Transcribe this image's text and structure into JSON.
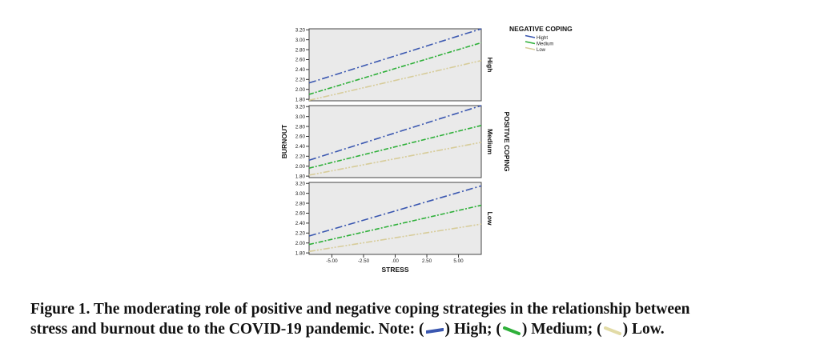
{
  "chart_data": {
    "type": "line",
    "x_label": "STRESS",
    "y_label": "BURNOUT",
    "x_ticks": [
      "-5.00",
      "-2.50",
      ".00",
      "2.50",
      "5.00"
    ],
    "x_tick_values": [
      -5,
      -2.5,
      0,
      2.5,
      5
    ],
    "xlim": [
      -6.8,
      6.8
    ],
    "y_ticks": [
      "1.80",
      "2.00",
      "2.20",
      "2.40",
      "2.60",
      "2.80",
      "3.00",
      "3.20"
    ],
    "y_tick_values": [
      1.8,
      2.0,
      2.2,
      2.4,
      2.6,
      2.8,
      3.0,
      3.2
    ],
    "ylim": [
      1.77,
      3.22
    ],
    "facet_variable": "POSITIVE COPING",
    "legend_title": "NEGATIVE COPING",
    "legend_placement": "top-right",
    "grid": false,
    "colors": {
      "High": "#3a57b0",
      "Medium": "#2fb03a",
      "Low": "#d7cc9a",
      "panel_bg": "#eaeaea"
    },
    "panels": [
      {
        "label": "High",
        "series": [
          {
            "name": "Hight",
            "x": [
              -6.8,
              6.8
            ],
            "y": [
              2.13,
              3.22
            ]
          },
          {
            "name": "Medium",
            "x": [
              -6.8,
              6.8
            ],
            "y": [
              1.9,
              2.94
            ]
          },
          {
            "name": "Low",
            "x": [
              -6.8,
              6.8
            ],
            "y": [
              1.78,
              2.58
            ]
          }
        ]
      },
      {
        "label": "Medium",
        "series": [
          {
            "name": "Hight",
            "x": [
              -6.8,
              6.8
            ],
            "y": [
              2.12,
              3.22
            ]
          },
          {
            "name": "Medium",
            "x": [
              -6.8,
              6.8
            ],
            "y": [
              1.96,
              2.82
            ]
          },
          {
            "name": "Low",
            "x": [
              -6.8,
              6.8
            ],
            "y": [
              1.82,
              2.48
            ]
          }
        ]
      },
      {
        "label": "Low",
        "series": [
          {
            "name": "Hight",
            "x": [
              -6.8,
              6.8
            ],
            "y": [
              2.14,
              3.15
            ]
          },
          {
            "name": "Medium",
            "x": [
              -6.8,
              6.8
            ],
            "y": [
              1.97,
              2.76
            ]
          },
          {
            "name": "Low",
            "x": [
              -6.8,
              6.8
            ],
            "y": [
              1.83,
              2.38
            ]
          }
        ]
      }
    ],
    "legend_entries": [
      "Hight",
      "Medium",
      "Low"
    ]
  },
  "caption": {
    "line1": "Figure 1. The moderating role of positive and negative coping strategies in the relationship between",
    "line2_prefix": "stress and burnout due to the COVID-19 pandemic. Note: (",
    "high_text": ") High; (",
    "medium_text": ") Medium; (",
    "low_text": ") Low."
  }
}
